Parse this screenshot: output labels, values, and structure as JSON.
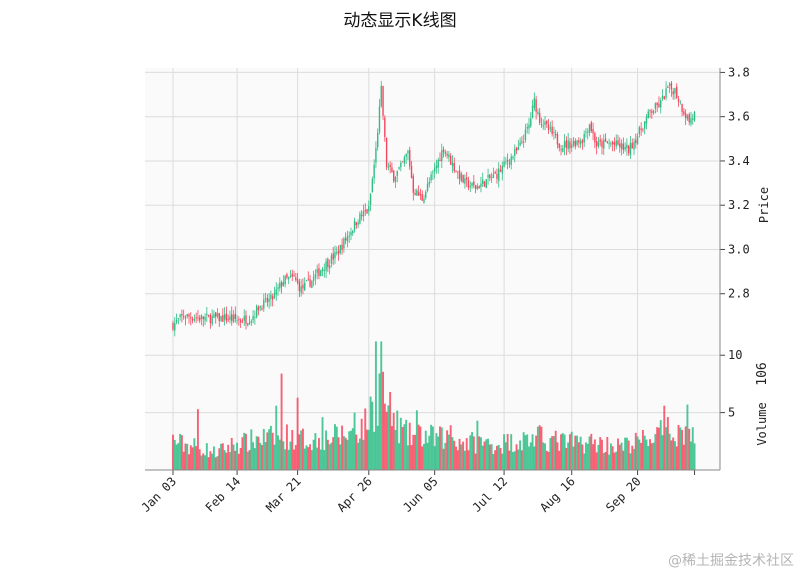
{
  "chart_data": {
    "type": "candlestick",
    "title": "动态显示K线图",
    "price_axis": {
      "label": "Price",
      "ylim": [
        2.6,
        3.82
      ],
      "ticks": [
        "2.8",
        "3.0",
        "3.2",
        "3.4",
        "3.6",
        "3.8"
      ]
    },
    "volume_axis": {
      "label": "Volume",
      "multiplier": "10^6",
      "ylim": [
        0,
        11.5
      ],
      "ticks": [
        "5",
        "10"
      ]
    },
    "x_ticks": [
      "Jan 03",
      "Feb 14",
      "Mar 21",
      "Apr 26",
      "Jun 05",
      "Jul 12",
      "Aug 16",
      "Sep 20"
    ],
    "grid": true,
    "up_color": "#2ebd85",
    "down_color": "#f6465d",
    "close_path": [
      [
        0,
        2.66
      ],
      [
        6,
        2.7
      ],
      [
        14,
        2.69
      ],
      [
        22,
        2.69
      ],
      [
        30,
        2.69
      ],
      [
        38,
        2.68
      ],
      [
        44,
        2.69
      ],
      [
        48,
        2.74
      ],
      [
        56,
        2.78
      ],
      [
        62,
        2.86
      ],
      [
        68,
        2.87
      ],
      [
        72,
        2.82
      ],
      [
        78,
        2.86
      ],
      [
        84,
        2.92
      ],
      [
        92,
        2.98
      ],
      [
        98,
        3.06
      ],
      [
        104,
        3.14
      ],
      [
        110,
        3.18
      ],
      [
        114,
        3.45
      ],
      [
        117,
        3.72
      ],
      [
        120,
        3.38
      ],
      [
        124,
        3.33
      ],
      [
        128,
        3.37
      ],
      [
        132,
        3.44
      ],
      [
        135,
        3.27
      ],
      [
        140,
        3.23
      ],
      [
        146,
        3.34
      ],
      [
        152,
        3.46
      ],
      [
        158,
        3.37
      ],
      [
        164,
        3.3
      ],
      [
        170,
        3.28
      ],
      [
        176,
        3.31
      ],
      [
        182,
        3.34
      ],
      [
        188,
        3.4
      ],
      [
        194,
        3.45
      ],
      [
        200,
        3.56
      ],
      [
        203,
        3.67
      ],
      [
        206,
        3.59
      ],
      [
        212,
        3.53
      ],
      [
        218,
        3.47
      ],
      [
        224,
        3.48
      ],
      [
        230,
        3.5
      ],
      [
        234,
        3.57
      ],
      [
        238,
        3.47
      ],
      [
        244,
        3.48
      ],
      [
        250,
        3.47
      ],
      [
        256,
        3.45
      ],
      [
        262,
        3.53
      ],
      [
        268,
        3.62
      ],
      [
        274,
        3.66
      ],
      [
        278,
        3.73
      ],
      [
        282,
        3.72
      ],
      [
        286,
        3.64
      ],
      [
        290,
        3.58
      ],
      [
        293,
        3.61
      ]
    ],
    "volume_path": [
      [
        0,
        2.8
      ],
      [
        6,
        2.4
      ],
      [
        14,
        2.2
      ],
      [
        24,
        1.6
      ],
      [
        34,
        2.4
      ],
      [
        42,
        2.6
      ],
      [
        48,
        3.0
      ],
      [
        56,
        3.0
      ],
      [
        62,
        3.2
      ],
      [
        70,
        3.0
      ],
      [
        78,
        2.8
      ],
      [
        86,
        3.0
      ],
      [
        94,
        3.2
      ],
      [
        102,
        3.6
      ],
      [
        108,
        4.2
      ],
      [
        114,
        6.0
      ],
      [
        117,
        8.4
      ],
      [
        120,
        5.8
      ],
      [
        126,
        4.2
      ],
      [
        132,
        3.2
      ],
      [
        140,
        3.2
      ],
      [
        148,
        3.0
      ],
      [
        156,
        3.0
      ],
      [
        164,
        2.6
      ],
      [
        172,
        2.6
      ],
      [
        180,
        2.4
      ],
      [
        188,
        2.6
      ],
      [
        196,
        2.8
      ],
      [
        204,
        3.0
      ],
      [
        212,
        2.8
      ],
      [
        220,
        2.6
      ],
      [
        228,
        2.6
      ],
      [
        236,
        2.6
      ],
      [
        244,
        2.4
      ],
      [
        252,
        2.2
      ],
      [
        260,
        2.6
      ],
      [
        268,
        3.0
      ],
      [
        276,
        3.6
      ],
      [
        284,
        3.6
      ],
      [
        293,
        3.2
      ]
    ],
    "volume_spikes": [
      [
        14,
        5.3
      ],
      [
        58,
        5.6
      ],
      [
        61,
        8.4
      ],
      [
        70,
        6.3
      ],
      [
        84,
        4.6
      ],
      [
        102,
        5.0
      ],
      [
        111,
        6.4
      ],
      [
        114,
        11.2
      ],
      [
        117,
        11.2
      ],
      [
        122,
        6.8
      ],
      [
        137,
        5.2
      ],
      [
        156,
        3.9
      ],
      [
        171,
        4.3
      ],
      [
        206,
        3.9
      ],
      [
        276,
        5.6
      ],
      [
        289,
        5.7
      ]
    ]
  }
}
